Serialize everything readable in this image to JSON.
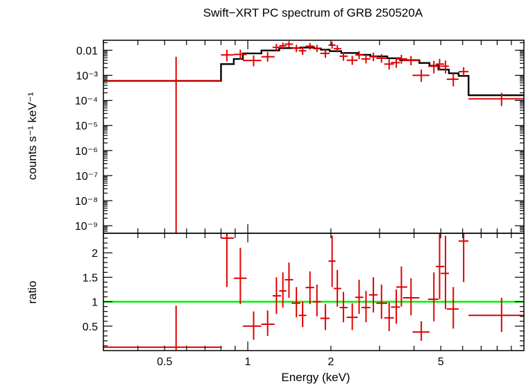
{
  "chart_data": [
    {
      "panel": "spectrum",
      "type": "scatter",
      "title": "Swift−XRT PC spectrum of GRB 250520A",
      "xlabel": "",
      "ylabel": "counts s⁻¹ keV⁻¹",
      "x_scale": "log",
      "y_scale": "log",
      "xlim": [
        0.3,
        10
      ],
      "ylim": [
        5e-10,
        0.025
      ],
      "y_ticks": [
        {
          "v": 0.01,
          "label": "0.01"
        },
        {
          "v": 0.001,
          "label": "10⁻³"
        },
        {
          "v": 0.0001,
          "label": "10⁻⁴"
        },
        {
          "v": 1e-05,
          "label": "10⁻⁵"
        },
        {
          "v": 1e-06,
          "label": "10⁻⁶"
        },
        {
          "v": 1e-07,
          "label": "10⁻⁷"
        },
        {
          "v": 1e-08,
          "label": "10⁻⁸"
        },
        {
          "v": 1e-09,
          "label": "10⁻⁹"
        }
      ],
      "data_color": "#e00000",
      "model_color": "#000000",
      "points": [
        {
          "xlo": 0.3,
          "xhi": 0.8,
          "x": 0.55,
          "y": 0.0006,
          "ylo": 5e-10,
          "yhi": 0.0055
        },
        {
          "xlo": 0.8,
          "xhi": 0.89,
          "x": 0.84,
          "y": 0.0065,
          "ylo": 0.0036,
          "yhi": 0.0105
        },
        {
          "xlo": 0.89,
          "xhi": 0.99,
          "x": 0.94,
          "y": 0.0068,
          "ylo": 0.0042,
          "yhi": 0.0105
        },
        {
          "xlo": 0.96,
          "xhi": 1.12,
          "x": 1.05,
          "y": 0.0039,
          "ylo": 0.0023,
          "yhi": 0.0062
        },
        {
          "xlo": 1.12,
          "xhi": 1.25,
          "x": 1.18,
          "y": 0.0055,
          "ylo": 0.0035,
          "yhi": 0.0085
        },
        {
          "xlo": 1.23,
          "xhi": 1.32,
          "x": 1.27,
          "y": 0.013,
          "ylo": 0.0092,
          "yhi": 0.018
        },
        {
          "xlo": 1.3,
          "xhi": 1.38,
          "x": 1.34,
          "y": 0.015,
          "ylo": 0.011,
          "yhi": 0.02
        },
        {
          "xlo": 1.36,
          "xhi": 1.46,
          "x": 1.41,
          "y": 0.0175,
          "ylo": 0.013,
          "yhi": 0.023
        },
        {
          "xlo": 1.44,
          "xhi": 1.55,
          "x": 1.5,
          "y": 0.012,
          "ylo": 0.0085,
          "yhi": 0.0165
        },
        {
          "xlo": 1.53,
          "xhi": 1.63,
          "x": 1.58,
          "y": 0.0095,
          "ylo": 0.0065,
          "yhi": 0.0135
        },
        {
          "xlo": 1.62,
          "xhi": 1.74,
          "x": 1.68,
          "y": 0.0145,
          "ylo": 0.0105,
          "yhi": 0.0195
        },
        {
          "xlo": 1.72,
          "xhi": 1.84,
          "x": 1.78,
          "y": 0.012,
          "ylo": 0.0085,
          "yhi": 0.0165
        },
        {
          "xlo": 1.83,
          "xhi": 1.98,
          "x": 1.91,
          "y": 0.0075,
          "ylo": 0.005,
          "yhi": 0.011
        },
        {
          "xlo": 1.96,
          "xhi": 2.08,
          "x": 2.02,
          "y": 0.016,
          "ylo": 0.0115,
          "yhi": 0.0215
        },
        {
          "xlo": 2.05,
          "xhi": 2.18,
          "x": 2.11,
          "y": 0.0115,
          "ylo": 0.0082,
          "yhi": 0.016
        },
        {
          "xlo": 2.15,
          "xhi": 2.3,
          "x": 2.22,
          "y": 0.0058,
          "ylo": 0.0038,
          "yhi": 0.0085
        },
        {
          "xlo": 2.28,
          "xhi": 2.5,
          "x": 2.39,
          "y": 0.004,
          "ylo": 0.0026,
          "yhi": 0.006
        },
        {
          "xlo": 2.45,
          "xhi": 2.62,
          "x": 2.53,
          "y": 0.0065,
          "ylo": 0.0044,
          "yhi": 0.0093
        },
        {
          "xlo": 2.58,
          "xhi": 2.78,
          "x": 2.68,
          "y": 0.0045,
          "ylo": 0.003,
          "yhi": 0.0066
        },
        {
          "xlo": 2.75,
          "xhi": 2.95,
          "x": 2.85,
          "y": 0.0055,
          "ylo": 0.0037,
          "yhi": 0.008
        },
        {
          "xlo": 2.92,
          "xhi": 3.2,
          "x": 3.05,
          "y": 0.0048,
          "ylo": 0.0032,
          "yhi": 0.007
        },
        {
          "xlo": 3.12,
          "xhi": 3.38,
          "x": 3.25,
          "y": 0.0028,
          "ylo": 0.0017,
          "yhi": 0.0043
        },
        {
          "xlo": 3.3,
          "xhi": 3.56,
          "x": 3.45,
          "y": 0.0032,
          "ylo": 0.002,
          "yhi": 0.0049
        },
        {
          "xlo": 3.45,
          "xhi": 3.78,
          "x": 3.6,
          "y": 0.0045,
          "ylo": 0.0029,
          "yhi": 0.0066
        },
        {
          "xlo": 3.65,
          "xhi": 4.18,
          "x": 3.9,
          "y": 0.0039,
          "ylo": 0.0025,
          "yhi": 0.0058
        },
        {
          "xlo": 3.95,
          "xhi": 4.55,
          "x": 4.25,
          "y": 0.001,
          "ylo": 0.00055,
          "yhi": 0.0017
        },
        {
          "xlo": 4.5,
          "xhi": 4.9,
          "x": 4.72,
          "y": 0.0023,
          "ylo": 0.0012,
          "yhi": 0.0038
        },
        {
          "xlo": 4.8,
          "xhi": 5.15,
          "x": 4.95,
          "y": 0.0028,
          "ylo": 0.0016,
          "yhi": 0.0045
        },
        {
          "xlo": 5.0,
          "xhi": 5.35,
          "x": 5.2,
          "y": 0.0023,
          "ylo": 0.0012,
          "yhi": 0.0039
        },
        {
          "xlo": 5.25,
          "xhi": 5.8,
          "x": 5.55,
          "y": 0.0007,
          "ylo": 0.00036,
          "yhi": 0.0012
        },
        {
          "xlo": 5.8,
          "xhi": 6.3,
          "x": 6.05,
          "y": 0.0014,
          "ylo": 0.00085,
          "yhi": 0.0021
        },
        {
          "xlo": 6.3,
          "xhi": 10.0,
          "x": 8.3,
          "y": 0.000115,
          "ylo": 6e-05,
          "yhi": 0.0002
        }
      ],
      "model_steps": [
        {
          "x0": 0.3,
          "x1": 0.8,
          "y": 0.0006
        },
        {
          "x0": 0.8,
          "x1": 0.89,
          "y": 0.0028
        },
        {
          "x0": 0.89,
          "x1": 0.96,
          "y": 0.0045
        },
        {
          "x0": 0.96,
          "x1": 1.12,
          "y": 0.0075
        },
        {
          "x0": 1.12,
          "x1": 1.3,
          "y": 0.0098
        },
        {
          "x0": 1.3,
          "x1": 1.55,
          "y": 0.0122
        },
        {
          "x0": 1.55,
          "x1": 1.74,
          "y": 0.0128
        },
        {
          "x0": 1.74,
          "x1": 1.84,
          "y": 0.0118
        },
        {
          "x0": 1.84,
          "x1": 1.98,
          "y": 0.0105
        },
        {
          "x0": 1.98,
          "x1": 2.18,
          "y": 0.0092
        },
        {
          "x0": 2.18,
          "x1": 2.5,
          "y": 0.0078
        },
        {
          "x0": 2.5,
          "x1": 2.78,
          "y": 0.0066
        },
        {
          "x0": 2.78,
          "x1": 3.2,
          "y": 0.0057
        },
        {
          "x0": 3.2,
          "x1": 3.56,
          "y": 0.0048
        },
        {
          "x0": 3.56,
          "x1": 4.18,
          "y": 0.004
        },
        {
          "x0": 4.18,
          "x1": 4.55,
          "y": 0.0031
        },
        {
          "x0": 4.55,
          "x1": 4.9,
          "y": 0.0024
        },
        {
          "x0": 4.9,
          "x1": 5.35,
          "y": 0.0017
        },
        {
          "x0": 5.35,
          "x1": 5.8,
          "y": 0.0012
        },
        {
          "x0": 5.8,
          "x1": 6.3,
          "y": 0.00095
        },
        {
          "x0": 6.3,
          "x1": 10.0,
          "y": 0.00016
        }
      ]
    },
    {
      "panel": "ratio",
      "type": "scatter",
      "title": "",
      "xlabel": "Energy (keV)",
      "ylabel": "ratio",
      "x_scale": "log",
      "y_scale": "linear",
      "xlim": [
        0.3,
        10
      ],
      "ylim": [
        0,
        2.4
      ],
      "x_ticks": [
        {
          "v": 0.5,
          "label": "0.5"
        },
        {
          "v": 1,
          "label": "1"
        },
        {
          "v": 2,
          "label": "2"
        },
        {
          "v": 5,
          "label": "5"
        }
      ],
      "y_ticks": [
        {
          "v": 0.5,
          "label": "0.5"
        },
        {
          "v": 1,
          "label": "1"
        },
        {
          "v": 1.5,
          "label": "1.5"
        },
        {
          "v": 2,
          "label": "2"
        }
      ],
      "reference_line": {
        "y": 1,
        "color": "#00ee00"
      },
      "data_color": "#e00000",
      "points": [
        {
          "xlo": 0.3,
          "xhi": 0.8,
          "x": 0.55,
          "y": 0.07,
          "ylo": 0.0,
          "yhi": 0.92
        },
        {
          "xlo": 0.8,
          "xhi": 0.89,
          "x": 0.84,
          "y": 2.3,
          "ylo": 1.3,
          "yhi": 2.4
        },
        {
          "xlo": 0.89,
          "xhi": 0.99,
          "x": 0.94,
          "y": 1.48,
          "ylo": 0.95,
          "yhi": 2.1
        },
        {
          "xlo": 0.96,
          "xhi": 1.12,
          "x": 1.05,
          "y": 0.5,
          "ylo": 0.22,
          "yhi": 0.8
        },
        {
          "xlo": 1.12,
          "xhi": 1.25,
          "x": 1.18,
          "y": 0.54,
          "ylo": 0.3,
          "yhi": 0.82
        },
        {
          "xlo": 1.23,
          "xhi": 1.32,
          "x": 1.27,
          "y": 1.12,
          "ylo": 0.75,
          "yhi": 1.5
        },
        {
          "xlo": 1.3,
          "xhi": 1.38,
          "x": 1.34,
          "y": 1.22,
          "ylo": 0.88,
          "yhi": 1.6
        },
        {
          "xlo": 1.36,
          "xhi": 1.46,
          "x": 1.41,
          "y": 1.45,
          "ylo": 1.08,
          "yhi": 1.8
        },
        {
          "xlo": 1.44,
          "xhi": 1.55,
          "x": 1.5,
          "y": 0.97,
          "ylo": 0.68,
          "yhi": 1.3
        },
        {
          "xlo": 1.53,
          "xhi": 1.63,
          "x": 1.58,
          "y": 0.72,
          "ylo": 0.48,
          "yhi": 1.0
        },
        {
          "xlo": 1.62,
          "xhi": 1.74,
          "x": 1.68,
          "y": 1.29,
          "ylo": 0.95,
          "yhi": 1.62
        },
        {
          "xlo": 1.72,
          "xhi": 1.84,
          "x": 1.78,
          "y": 1.0,
          "ylo": 0.7,
          "yhi": 1.35
        },
        {
          "xlo": 1.83,
          "xhi": 1.98,
          "x": 1.91,
          "y": 0.66,
          "ylo": 0.42,
          "yhi": 0.95
        },
        {
          "xlo": 1.96,
          "xhi": 2.08,
          "x": 2.02,
          "y": 1.83,
          "ylo": 1.3,
          "yhi": 2.35
        },
        {
          "xlo": 2.05,
          "xhi": 2.18,
          "x": 2.11,
          "y": 1.27,
          "ylo": 0.9,
          "yhi": 1.65
        },
        {
          "xlo": 2.15,
          "xhi": 2.3,
          "x": 2.22,
          "y": 0.88,
          "ylo": 0.58,
          "yhi": 1.2
        },
        {
          "xlo": 2.28,
          "xhi": 2.5,
          "x": 2.39,
          "y": 0.68,
          "ylo": 0.42,
          "yhi": 0.97
        },
        {
          "xlo": 2.45,
          "xhi": 2.62,
          "x": 2.53,
          "y": 1.09,
          "ylo": 0.75,
          "yhi": 1.45
        },
        {
          "xlo": 2.58,
          "xhi": 2.78,
          "x": 2.68,
          "y": 0.88,
          "ylo": 0.58,
          "yhi": 1.22
        },
        {
          "xlo": 2.75,
          "xhi": 2.95,
          "x": 2.85,
          "y": 1.14,
          "ylo": 0.78,
          "yhi": 1.5
        },
        {
          "xlo": 2.92,
          "xhi": 3.2,
          "x": 3.05,
          "y": 0.97,
          "ylo": 0.65,
          "yhi": 1.35
        },
        {
          "xlo": 3.12,
          "xhi": 3.38,
          "x": 3.25,
          "y": 0.67,
          "ylo": 0.4,
          "yhi": 0.98
        },
        {
          "xlo": 3.3,
          "xhi": 3.56,
          "x": 3.45,
          "y": 0.89,
          "ylo": 0.55,
          "yhi": 1.25
        },
        {
          "xlo": 3.45,
          "xhi": 3.78,
          "x": 3.6,
          "y": 1.3,
          "ylo": 0.9,
          "yhi": 1.72
        },
        {
          "xlo": 3.65,
          "xhi": 4.18,
          "x": 3.9,
          "y": 1.08,
          "ylo": 0.72,
          "yhi": 1.48
        },
        {
          "xlo": 3.95,
          "xhi": 4.55,
          "x": 4.25,
          "y": 0.38,
          "ylo": 0.2,
          "yhi": 0.6
        },
        {
          "xlo": 4.5,
          "xhi": 4.9,
          "x": 4.72,
          "y": 1.05,
          "ylo": 0.6,
          "yhi": 1.6
        },
        {
          "xlo": 4.8,
          "xhi": 5.15,
          "x": 4.95,
          "y": 1.72,
          "ylo": 1.05,
          "yhi": 2.45
        },
        {
          "xlo": 5.0,
          "xhi": 5.35,
          "x": 5.2,
          "y": 1.58,
          "ylo": 0.85,
          "yhi": 2.35
        },
        {
          "xlo": 5.25,
          "xhi": 5.8,
          "x": 5.55,
          "y": 0.85,
          "ylo": 0.45,
          "yhi": 1.3
        },
        {
          "xlo": 5.8,
          "xhi": 6.3,
          "x": 6.05,
          "y": 2.24,
          "ylo": 1.4,
          "yhi": 2.45
        },
        {
          "xlo": 6.3,
          "xhi": 10.0,
          "x": 8.3,
          "y": 0.72,
          "ylo": 0.38,
          "yhi": 1.08
        }
      ]
    }
  ]
}
